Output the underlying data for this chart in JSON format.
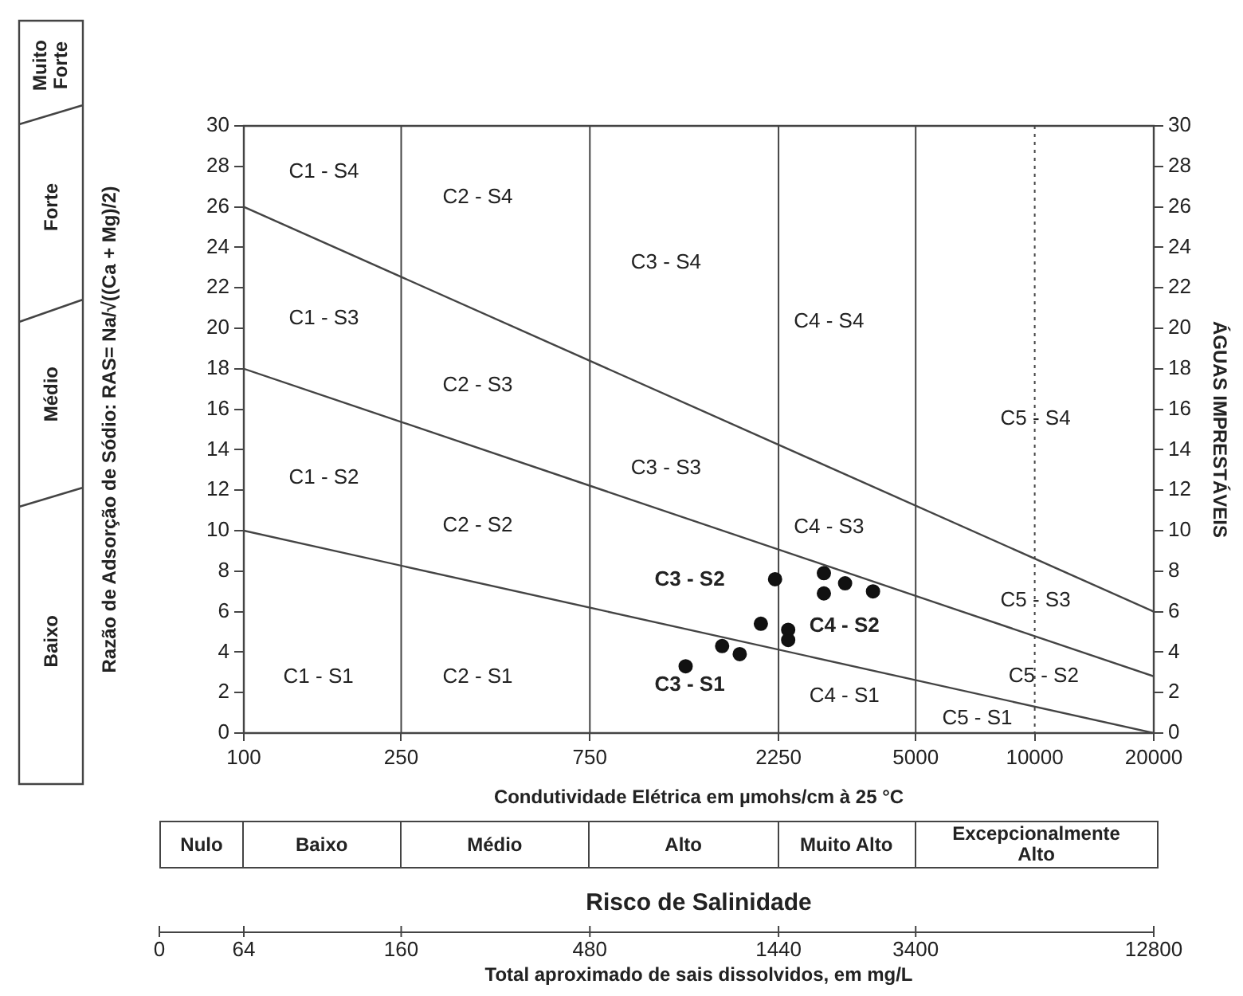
{
  "chart_data": {
    "type": "scatter",
    "xlabel": "Condutividade Elétrica em µmohs/cm à 25 °C",
    "ylabel": "Razão de Adsorção de Sódio: RAS= Na/√((Ca + Mg)/2)",
    "y2label": "ÁGUAS IMPRESTÁVEIS",
    "log": "x",
    "xlim": [
      100,
      20000
    ],
    "xticks": [
      100,
      250,
      750,
      2250,
      5000,
      10000,
      20000
    ],
    "ylim": [
      0,
      30
    ],
    "yticks": [
      0,
      2,
      4,
      6,
      8,
      10,
      12,
      14,
      16,
      18,
      20,
      22,
      24,
      26,
      28,
      30
    ],
    "y2lim": [
      0,
      30
    ],
    "y2ticks": [
      0,
      2,
      4,
      6,
      8,
      10,
      12,
      14,
      16,
      18,
      20,
      22,
      24,
      26,
      28,
      30
    ],
    "grid": false,
    "legend": false,
    "series": [
      {
        "marker": "circle",
        "color": "#111111",
        "x": [
          2205,
          2930,
          2930,
          3315,
          3900,
          2030,
          2380,
          2380,
          1620,
          1795,
          1310
        ],
        "values": [
          7.6,
          7.9,
          6.9,
          7.4,
          7.0,
          5.4,
          5.1,
          4.6,
          4.3,
          3.9,
          3.3
        ]
      },
      {
        "type": "line",
        "color": "#444444",
        "x": [
          100,
          20000
        ],
        "values": [
          10,
          0
        ],
        "marker": "none"
      },
      {
        "type": "line",
        "color": "#444444",
        "x": [
          100,
          20000
        ],
        "values": [
          18,
          2.8
        ],
        "marker": "none"
      },
      {
        "type": "line",
        "color": "#444444",
        "x": [
          100,
          20000
        ],
        "values": [
          26,
          6
        ],
        "marker": "none"
      }
    ],
    "ref_lines": [
      {
        "axis": "x",
        "value": 250,
        "color": "#444444"
      },
      {
        "axis": "x",
        "value": 750,
        "color": "#444444"
      },
      {
        "axis": "x",
        "value": 2250,
        "color": "#444444"
      },
      {
        "axis": "x",
        "value": 5000,
        "color": "#444444"
      },
      {
        "axis": "x",
        "value": 10000,
        "color": "#444444",
        "line_style": "dotted"
      }
    ],
    "annotations": [
      "C1 - S4",
      "C2 - S4",
      "C3 - S4",
      "C4 - S4",
      "C5 - S4",
      "C1 - S3",
      "C2 - S3",
      "C3 - S3",
      "C4 - S3",
      "C5 - S3",
      "C1 - S2",
      "C2 - S2",
      "C3 - S2",
      "C4 - S2",
      "C5 - S2",
      "C1 - S1",
      "C2 - S1",
      "C3 - S1",
      "C4 - S1",
      "C5 - S1",
      "Nulo",
      "Baixo",
      "Médio",
      "Alto",
      "Muito Alto",
      "Excepcionalmente Alto",
      "Risco de Salinidade",
      "Baixo",
      "Médio",
      "Forte",
      "Muito Forte",
      "0",
      "64",
      "160",
      "480",
      "1440",
      "3400",
      "12800",
      "Total aproximado de sais dissolvidos, em mg/L"
    ]
  }
}
